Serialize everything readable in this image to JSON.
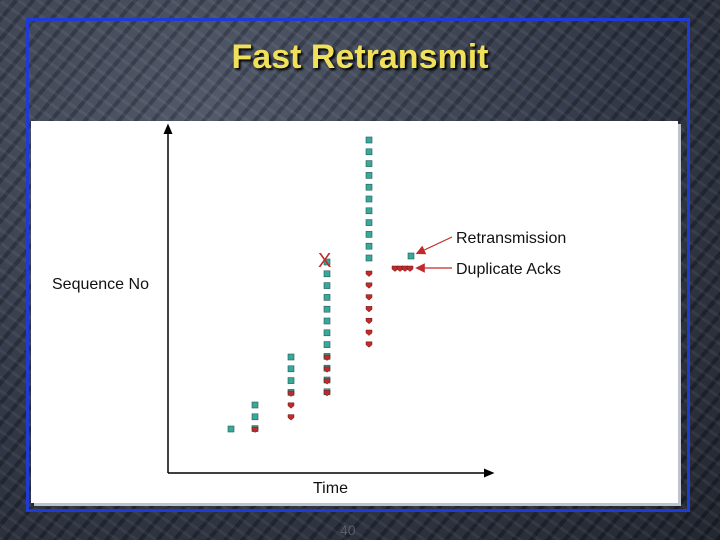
{
  "slide": {
    "title": "Fast Retransmit",
    "page_number": "40"
  },
  "diagram": {
    "y_axis_label": "Sequence No",
    "x_axis_label": "Time",
    "loss_marker": "X",
    "annotations": {
      "retransmission": "Retransmission",
      "duplicate_acks": "Duplicate Acks"
    },
    "legend_colors": {
      "packet": "#3aa79a",
      "ack": "#c02a2a",
      "axis": "#000000",
      "arrow": "#c02a2a"
    }
  }
}
